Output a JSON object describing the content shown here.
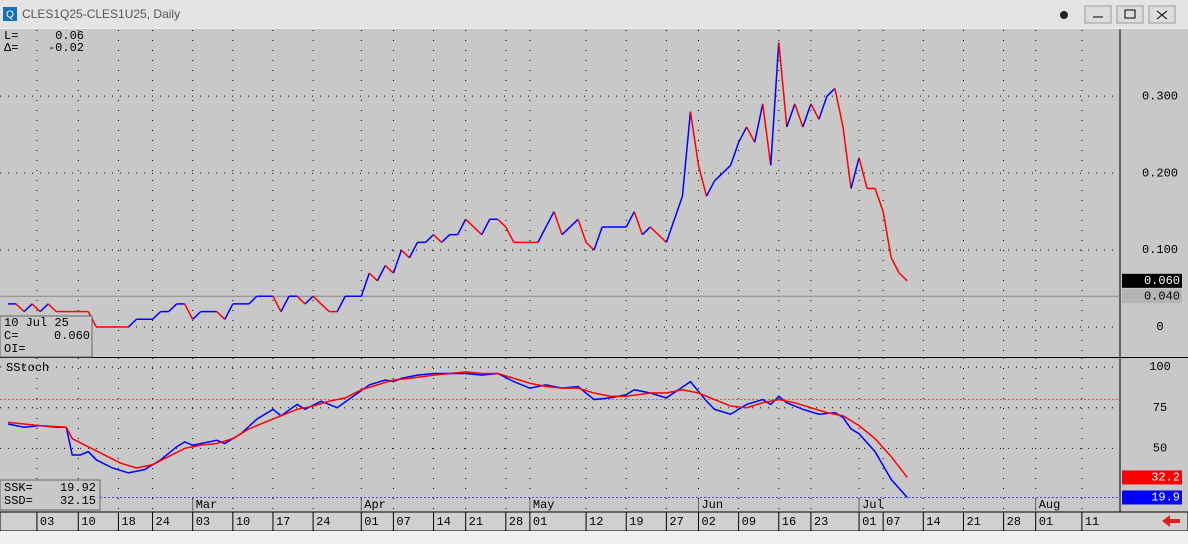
{
  "window": {
    "title": "CLES1Q25-CLES1U25, Daily"
  },
  "info": {
    "last_key": "L=",
    "last_value": "0.06",
    "delta_key": "Δ=",
    "delta_value": "-0.02",
    "cursor_date": "10 Jul 25",
    "close_key": "C=",
    "close_value": "0.060",
    "oi_key": "OI=",
    "study_name": "SStoch",
    "ssk_key": "SSK=",
    "ssk_value": "19.92",
    "ssd_key": "SSD=",
    "ssd_value": "32.15"
  },
  "chart_data": [
    {
      "type": "line",
      "up_color": "#0000ff",
      "down_color": "#ff0000",
      "ylim": [
        -0.039,
        0.386
      ],
      "yticks": [
        0,
        {
          "value": 0.1,
          "label": "0.100"
        },
        {
          "value": 0.2,
          "label": "0.200"
        },
        {
          "value": 0.3,
          "label": "0.300"
        }
      ],
      "grid": true,
      "x": [
        0,
        1,
        2,
        3,
        4,
        5,
        6,
        7,
        8,
        9,
        10,
        11,
        15,
        16,
        18,
        19,
        20,
        21,
        22,
        23,
        24,
        26,
        27,
        28,
        30,
        31,
        33,
        34,
        35,
        36,
        37,
        38,
        39,
        40,
        41,
        42,
        44,
        45,
        46,
        47,
        48,
        49,
        50,
        51,
        52,
        53,
        54,
        55,
        56,
        57,
        58,
        59,
        60,
        61,
        62,
        63,
        66,
        68,
        69,
        71,
        72,
        73,
        74,
        77,
        78,
        79,
        80,
        82,
        84,
        85,
        86,
        87,
        88,
        90,
        91,
        92,
        93,
        94,
        95,
        96,
        97,
        98,
        99,
        100,
        101,
        102,
        103,
        104,
        105,
        106,
        107,
        108,
        109,
        110,
        111,
        112
      ],
      "values": [
        0.03,
        0.03,
        0.02,
        0.03,
        0.02,
        0.03,
        0.02,
        0.02,
        0.02,
        0.02,
        0.02,
        0.0,
        0.0,
        0.01,
        0.01,
        0.02,
        0.02,
        0.03,
        0.03,
        0.01,
        0.02,
        0.02,
        0.01,
        0.03,
        0.03,
        0.04,
        0.04,
        0.02,
        0.04,
        0.04,
        0.03,
        0.04,
        0.03,
        0.02,
        0.02,
        0.04,
        0.04,
        0.07,
        0.06,
        0.08,
        0.07,
        0.1,
        0.09,
        0.11,
        0.11,
        0.12,
        0.11,
        0.12,
        0.12,
        0.14,
        0.13,
        0.12,
        0.14,
        0.14,
        0.13,
        0.11,
        0.11,
        0.15,
        0.12,
        0.14,
        0.11,
        0.1,
        0.13,
        0.13,
        0.15,
        0.12,
        0.13,
        0.11,
        0.17,
        0.28,
        0.21,
        0.17,
        0.19,
        0.21,
        0.24,
        0.26,
        0.24,
        0.29,
        0.21,
        0.37,
        0.26,
        0.29,
        0.26,
        0.29,
        0.27,
        0.3,
        0.31,
        0.26,
        0.18,
        0.22,
        0.18,
        0.18,
        0.15,
        0.09,
        0.07,
        0.06
      ],
      "markers": [
        {
          "value": 0.06,
          "label": "0.060",
          "color": "#000000"
        },
        {
          "value": 0.04,
          "label": "0.040",
          "color": "#b4b4b4",
          "line": true
        }
      ]
    },
    {
      "type": "line",
      "ylim": [
        11.6,
        105.5
      ],
      "yticks": [
        50,
        75,
        100
      ],
      "grid": true,
      "series": [
        {
          "name": "SSK",
          "color": "#0000ff",
          "x": [
            0,
            2,
            4,
            6,
            7.25,
            8,
            9,
            10,
            11,
            13,
            15,
            17,
            19,
            21,
            22,
            23,
            26,
            27,
            29,
            31,
            33,
            34,
            36,
            37,
            39,
            41,
            43,
            45,
            47,
            48,
            49,
            51,
            53,
            55,
            57,
            59,
            61,
            63,
            65,
            67,
            69,
            71,
            73,
            75,
            77,
            78,
            80,
            82,
            85,
            87,
            88,
            90,
            92,
            94,
            95,
            96,
            97,
            99,
            101,
            103,
            104,
            105,
            106,
            108,
            110,
            112
          ],
          "values": [
            65,
            63,
            64,
            63,
            63,
            46,
            46,
            48,
            43,
            38,
            35,
            37,
            43,
            51,
            54,
            52,
            55,
            53,
            59,
            68,
            74,
            70,
            77,
            74,
            79,
            75,
            82,
            89,
            92,
            91,
            93,
            95,
            96,
            96,
            96,
            95,
            96,
            91,
            87,
            89,
            87,
            88,
            80,
            81,
            83,
            86,
            84,
            81,
            91,
            79,
            74,
            71,
            77,
            80,
            77,
            82,
            78,
            74,
            71,
            72,
            69,
            62,
            59,
            48,
            31,
            19.9
          ]
        },
        {
          "name": "SSD",
          "color": "#ff0000",
          "x": [
            0,
            4,
            7.25,
            8,
            10,
            12,
            14,
            16,
            18,
            20,
            22,
            24,
            26,
            28,
            30,
            32,
            34,
            36,
            38,
            40,
            42,
            44,
            46,
            48,
            50,
            53,
            57,
            59,
            61,
            63,
            65,
            67,
            69,
            71,
            73,
            75,
            77,
            80,
            82,
            84,
            86,
            88,
            90,
            92,
            94,
            96,
            98,
            100,
            102,
            104,
            106,
            108,
            110,
            112
          ],
          "values": [
            66,
            64,
            63,
            56,
            51,
            46,
            41,
            38,
            40,
            45,
            50,
            52,
            53,
            56,
            62,
            66,
            70,
            74,
            76,
            79,
            81,
            86,
            89,
            92,
            93,
            95,
            97,
            96,
            96,
            93,
            90,
            88,
            87,
            87,
            84,
            82,
            82,
            84,
            84,
            86,
            84,
            80,
            76,
            75,
            78,
            80,
            78,
            75,
            72,
            70,
            64,
            56,
            45,
            32.2
          ]
        }
      ],
      "ref_lines": [
        {
          "value": 80,
          "color": "#ff0000"
        },
        {
          "value": 20,
          "color": "#0000ff"
        }
      ],
      "markers": [
        {
          "value": 32.2,
          "label": "32.2",
          "color": "#ff0000"
        },
        {
          "value": 19.9,
          "label": "19.9",
          "color": "#0000ff"
        }
      ]
    }
  ],
  "date_axis": {
    "xlim": [
      -1,
      138.5
    ],
    "days": [
      {
        "value": 3.6,
        "label": "03"
      },
      {
        "value": 8.75,
        "label": "10"
      },
      {
        "value": 13.75,
        "label": "18"
      },
      {
        "value": 18,
        "label": "24"
      },
      {
        "value": 23,
        "label": "03"
      },
      {
        "value": 28,
        "label": "10"
      },
      {
        "value": 33,
        "label": "17"
      },
      {
        "value": 38,
        "label": "24"
      },
      {
        "value": 44,
        "label": "01"
      },
      {
        "value": 48,
        "label": "07"
      },
      {
        "value": 53,
        "label": "14"
      },
      {
        "value": 57,
        "label": "21"
      },
      {
        "value": 62,
        "label": "28"
      },
      {
        "value": 65,
        "label": "01"
      },
      {
        "value": 72,
        "label": "12"
      },
      {
        "value": 77,
        "label": "19"
      },
      {
        "value": 82,
        "label": "27"
      },
      {
        "value": 86,
        "label": "02"
      },
      {
        "value": 91,
        "label": "09"
      },
      {
        "value": 96,
        "label": "16"
      },
      {
        "value": 100,
        "label": "23"
      },
      {
        "value": 106,
        "label": "01"
      },
      {
        "value": 109,
        "label": "07"
      },
      {
        "value": 114,
        "label": "14"
      },
      {
        "value": 119,
        "label": "21"
      },
      {
        "value": 124,
        "label": "28"
      },
      {
        "value": 128,
        "label": "01"
      },
      {
        "value": 133.75,
        "label": "11"
      }
    ],
    "months": [
      {
        "value": 23,
        "label": "Mar"
      },
      {
        "value": 44,
        "label": "Apr"
      },
      {
        "value": 65,
        "label": "May"
      },
      {
        "value": 86,
        "label": "Jun"
      },
      {
        "value": 106,
        "label": "Jul"
      },
      {
        "value": 128,
        "label": "Aug"
      }
    ]
  }
}
